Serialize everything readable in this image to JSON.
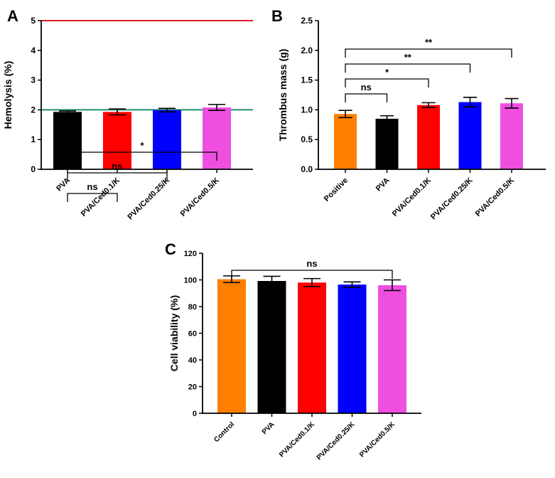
{
  "chart_data": [
    {
      "panel": "A",
      "type": "bar",
      "ylabel": "Hemolysis (%)",
      "ylim": [
        0,
        5
      ],
      "yticks": [
        0,
        1,
        2,
        3,
        4,
        5
      ],
      "categories": [
        "PVA",
        "PVA/Ced0.1/K",
        "PVA/Ced0.25/K",
        "PVA/Ced0.5/K"
      ],
      "values": [
        1.93,
        1.93,
        1.99,
        2.08
      ],
      "errors": [
        0.03,
        0.1,
        0.06,
        0.1
      ],
      "colors": [
        "#000000",
        "#ff0000",
        "#0000ff",
        "#ee4fe0"
      ],
      "reference_lines": [
        {
          "y": 5,
          "color": "#e31a2b"
        },
        {
          "y": 2,
          "color": "#1f8f6e"
        }
      ],
      "significance": [
        {
          "from": 0,
          "to": 1,
          "label": "ns"
        },
        {
          "from": 0,
          "to": 2,
          "label": "ns"
        },
        {
          "from": 0,
          "to": 3,
          "label": "*"
        }
      ]
    },
    {
      "panel": "B",
      "type": "bar",
      "ylabel": "Thrombus mass (g)",
      "ylim": [
        0,
        2.5
      ],
      "yticks": [
        "0.0",
        "0.5",
        "1.0",
        "1.5",
        "2.0",
        "2.5"
      ],
      "categories": [
        "Positive",
        "PVA",
        "PVA/Ced0.1/K",
        "PVA/Ced0.25/K",
        "PVA/Ced0.5/K"
      ],
      "values": [
        0.93,
        0.85,
        1.08,
        1.13,
        1.11
      ],
      "errors": [
        0.06,
        0.05,
        0.04,
        0.08,
        0.08
      ],
      "colors": [
        "#ff7f00",
        "#000000",
        "#ff0000",
        "#0000ff",
        "#ee4fe0"
      ],
      "significance": [
        {
          "from": 0,
          "to": 1,
          "label": "ns"
        },
        {
          "from": 0,
          "to": 2,
          "label": "*"
        },
        {
          "from": 0,
          "to": 3,
          "label": "**"
        },
        {
          "from": 0,
          "to": 4,
          "label": "**"
        }
      ]
    },
    {
      "panel": "C",
      "type": "bar",
      "ylabel": "Cell viability (%)",
      "ylim": [
        0,
        120
      ],
      "yticks": [
        0,
        20,
        40,
        60,
        80,
        100,
        120
      ],
      "categories": [
        "Control",
        "PVA",
        "PVA/Ced0.1/K",
        "PVA/Ced0.25/K",
        "PVA/Ced0.5/K"
      ],
      "values": [
        100.5,
        99.2,
        98.0,
        96.5,
        96.0
      ],
      "errors": [
        2.5,
        3.5,
        3.0,
        2.0,
        4.0
      ],
      "colors": [
        "#ff7f00",
        "#000000",
        "#ff0000",
        "#0000ff",
        "#ee4fe0"
      ],
      "significance": [
        {
          "from": 0,
          "to": 4,
          "label": "ns"
        }
      ]
    }
  ]
}
